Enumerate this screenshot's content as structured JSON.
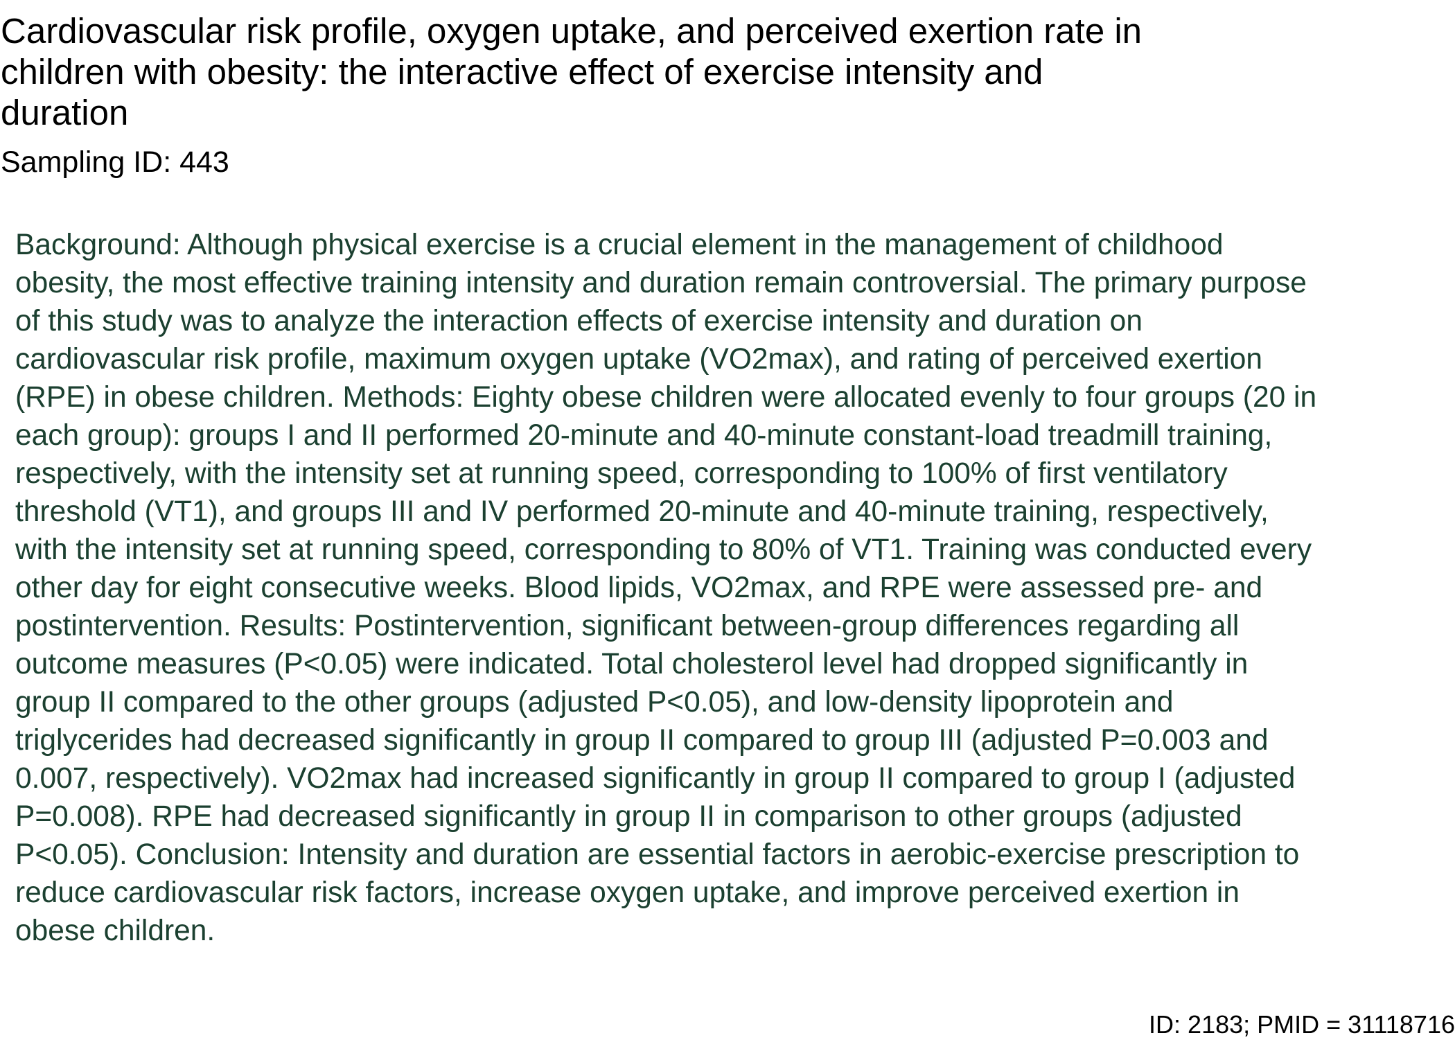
{
  "document": {
    "title": "Cardiovascular risk profile, oxygen uptake, and perceived exertion rate in\nchildren with obesity: the interactive effect of exercise intensity and\nduration",
    "sampling_id": "Sampling ID: 443",
    "abstract": "Background: Although physical exercise is a crucial element in the management of childhood\nobesity, the most effective training intensity and duration remain controversial. The primary purpose\nof this study was to analyze the interaction effects of exercise intensity and duration on\ncardiovascular risk profile, maximum oxygen uptake (VO2max), and rating of perceived exertion\n(RPE) in obese children. Methods: Eighty obese children were allocated evenly to four groups (20 in\neach group): groups I and II performed 20-minute and 40-minute constant-load treadmill training,\nrespectively, with the intensity set at running speed, corresponding to 100% of first ventilatory\nthreshold (VT1), and groups III and IV performed 20-minute and 40-minute training, respectively,\nwith the intensity set at running speed, corresponding to 80% of VT1. Training was conducted every\nother day for eight consecutive weeks. Blood lipids, VO2max, and RPE were assessed pre- and\npostintervention. Results: Postintervention, significant between-group differences regarding all\noutcome measures (P<0.05) were indicated. Total cholesterol level had dropped significantly in\ngroup II compared to the other groups (adjusted P<0.05), and low-density lipoprotein and\ntriglycerides had decreased significantly in group II compared to group III (adjusted P=0.003 and\n0.007, respectively). VO2max had increased significantly in group II compared to group I (adjusted\nP=0.008). RPE had decreased significantly in group II in comparison to other groups (adjusted\nP<0.05). Conclusion: Intensity and duration are essential factors in aerobic-exercise prescription to\nreduce cardiovascular risk factors, increase oxygen uptake, and improve perceived exertion in\nobese children.",
    "footer_id": "ID: 2183; PMID = 31118716"
  },
  "colors": {
    "title_text": "#000000",
    "abstract_text": "#1b4030",
    "background": "#ffffff"
  }
}
